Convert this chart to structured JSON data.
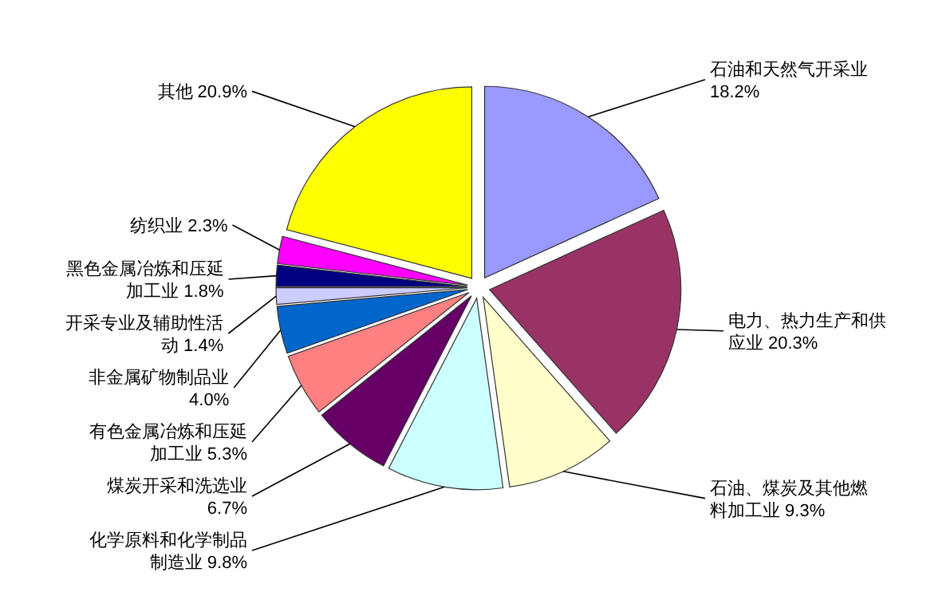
{
  "chart_data": {
    "type": "pie",
    "categories": [
      "石油和天然气开采业",
      "电力、热力生产和供应业",
      "石油、煤炭及其他燃料加工业",
      "化学原料和化学制品制造业",
      "煤炭开采和洗选业",
      "有色金属冶炼和压延加工业",
      "非金属矿物制品业",
      "开采专业及辅助性活动",
      "黑色金属冶炼和压延加工业",
      "纺织业",
      "其他"
    ],
    "values": [
      18.2,
      20.3,
      9.3,
      9.8,
      6.7,
      5.3,
      4.0,
      1.4,
      1.8,
      2.3,
      20.9
    ],
    "value_labels": [
      "18.2%",
      "20.3%",
      "9.3%",
      "9.8%",
      "6.7%",
      "5.3%",
      "4.0%",
      "1.4%",
      "1.8%",
      "2.3%",
      "20.9%"
    ],
    "colors": [
      "#9999ff",
      "#993366",
      "#ffffcc",
      "#ccffff",
      "#660066",
      "#ff8080",
      "#0066cc",
      "#ccccff",
      "#000080",
      "#ff00ff",
      "#ffff00"
    ]
  }
}
